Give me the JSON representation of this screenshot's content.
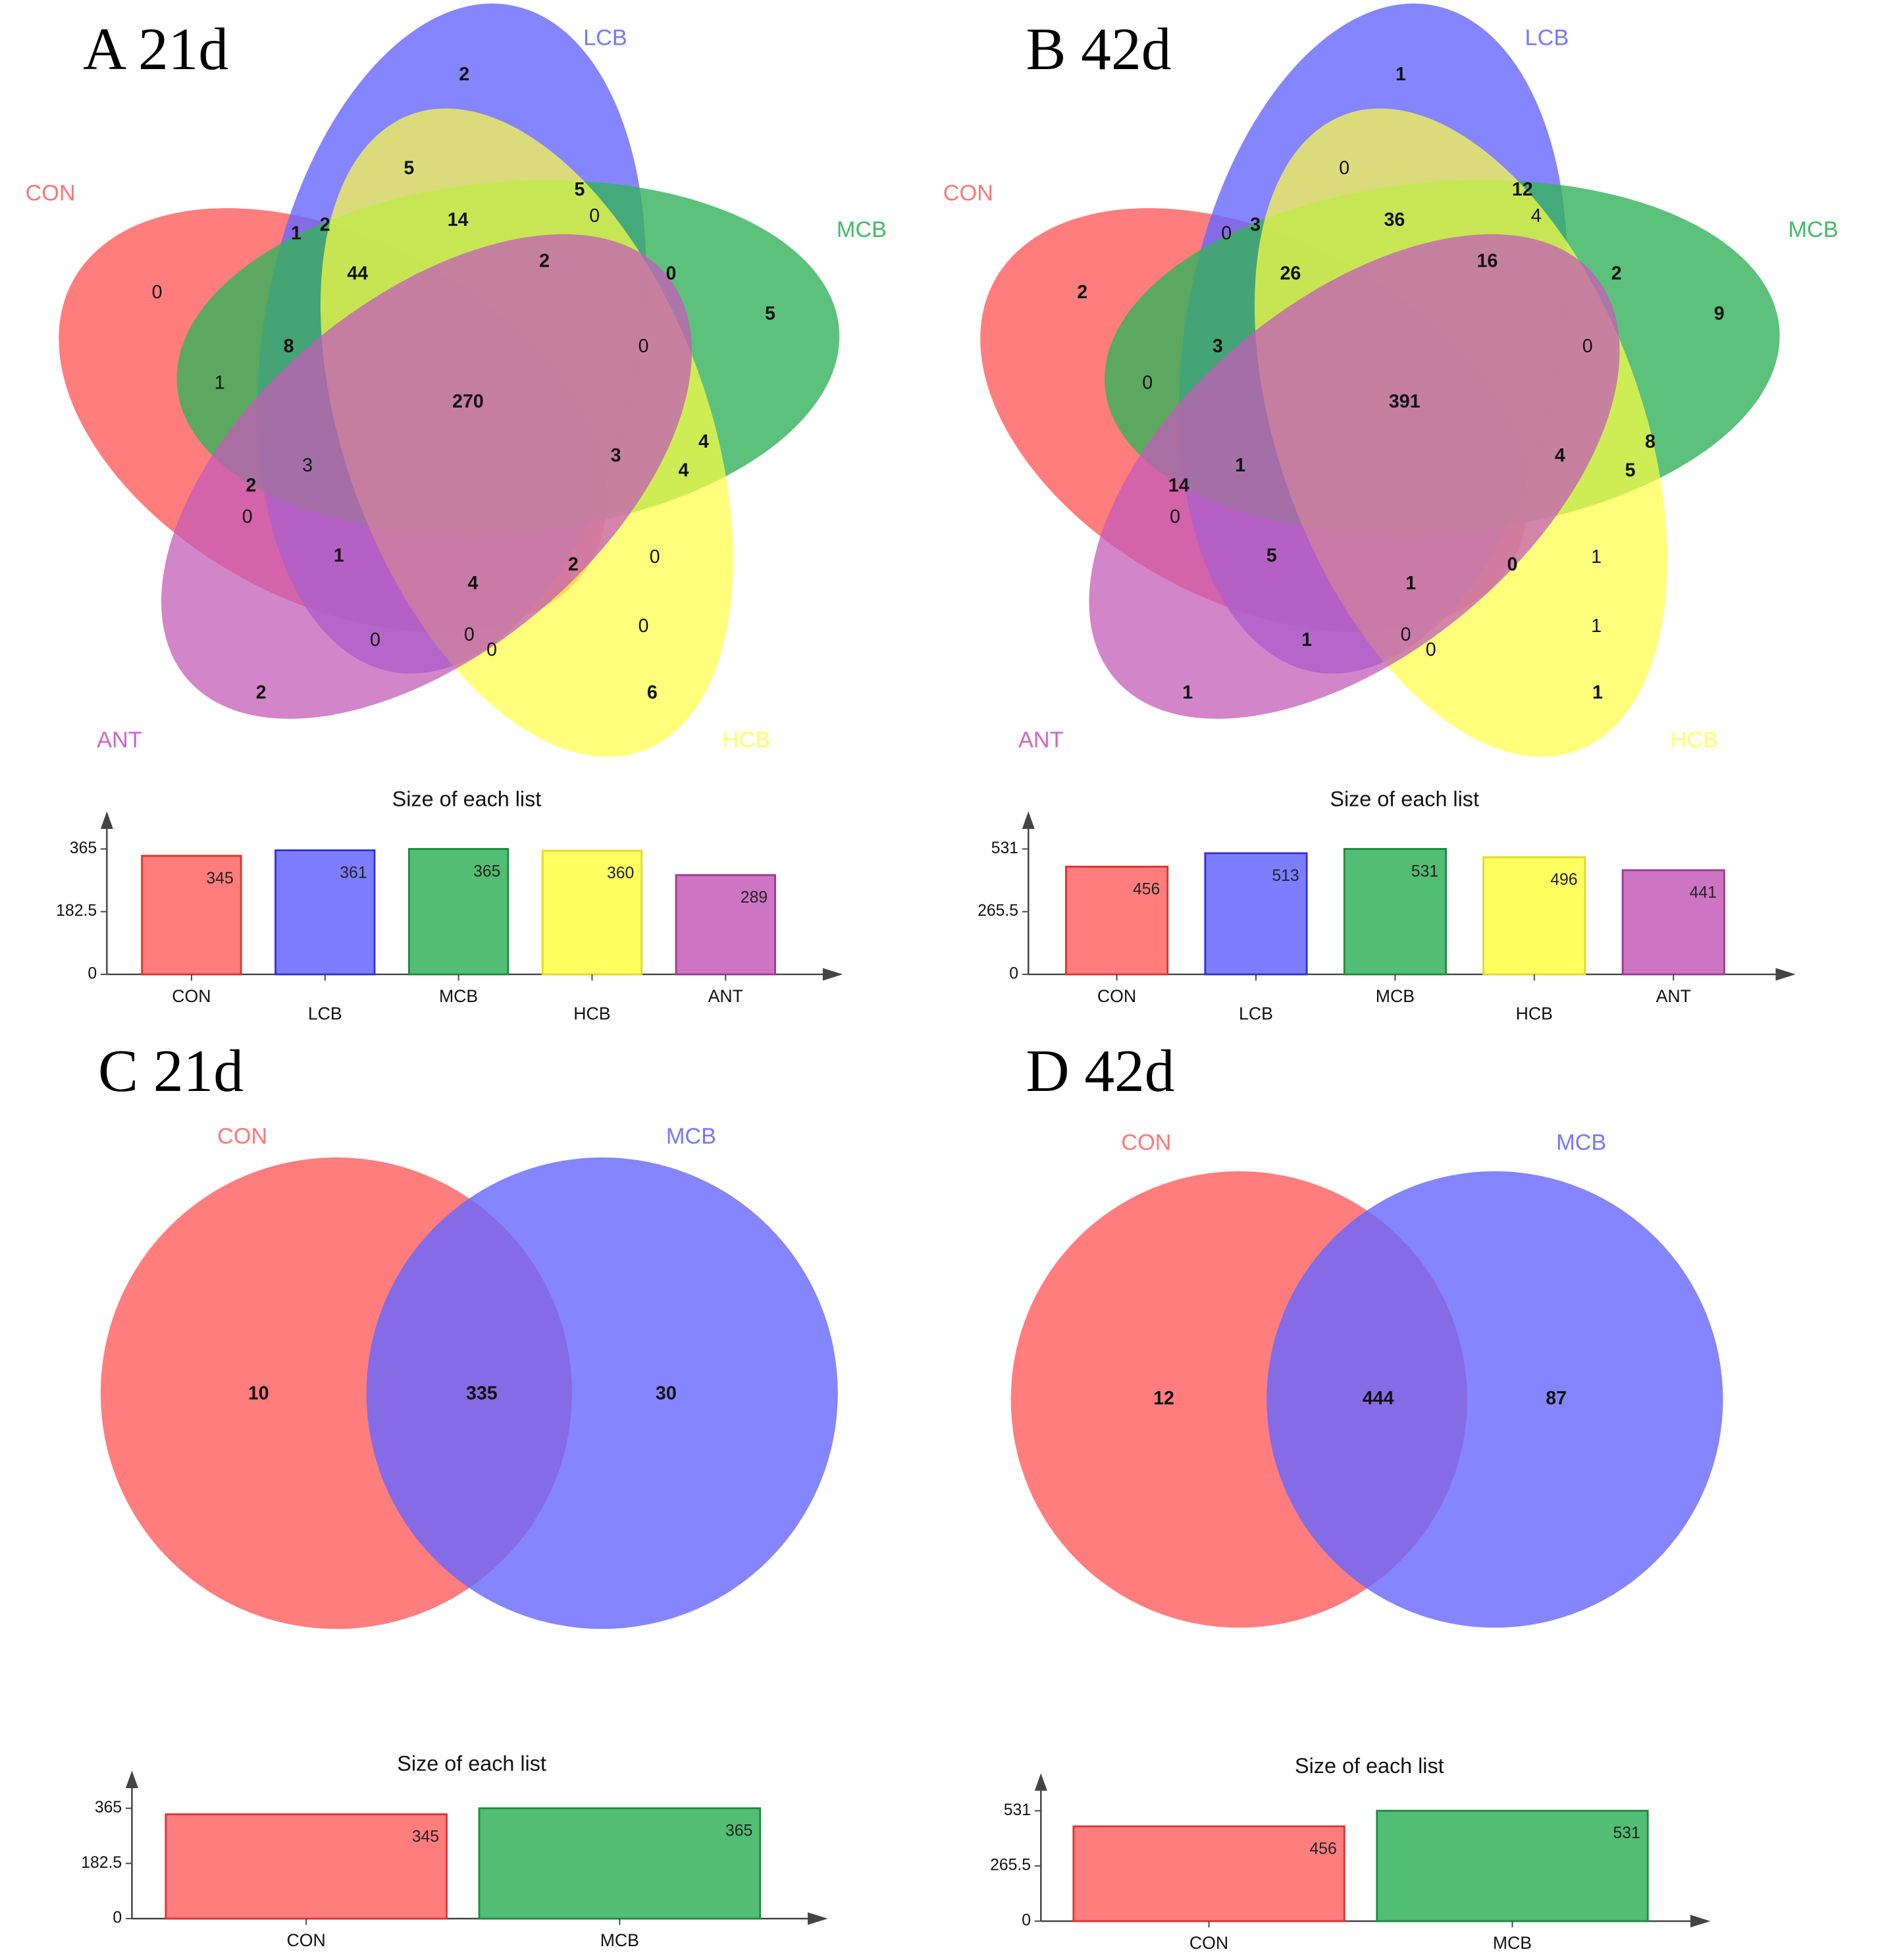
{
  "chart_data": [
    {
      "type": "venn",
      "panel": "A 21d",
      "sets": [
        {
          "name": "CON",
          "color": "#ff6666"
        },
        {
          "name": "LCB",
          "color": "#6666ff"
        },
        {
          "name": "MCB",
          "color": "#33b35a"
        },
        {
          "name": "HCB",
          "color": "#ffff44"
        },
        {
          "name": "ANT",
          "color": "#c45cb8"
        }
      ],
      "regions": [
        "2",
        "5",
        "14",
        "5",
        "0",
        "1",
        "2",
        "44",
        "2",
        "0",
        "0",
        "8",
        "0",
        "5",
        "1",
        "270",
        "4",
        "3",
        "4",
        "2",
        "3",
        "0",
        "0",
        "1",
        "4",
        "2",
        "0",
        "0",
        "0",
        "0",
        "2",
        "6"
      ],
      "bar_title": "Size of each list",
      "yticks": [
        "365",
        "182.5",
        "0"
      ],
      "ymax": 365,
      "categories": [
        "CON",
        "LCB",
        "MCB",
        "HCB",
        "ANT"
      ],
      "values": [
        345,
        361,
        365,
        360,
        289
      ],
      "value_labels": [
        "345",
        "361",
        "365",
        "360",
        "289"
      ]
    },
    {
      "type": "venn",
      "panel": "B 42d",
      "sets": [
        {
          "name": "CON",
          "color": "#ff6666"
        },
        {
          "name": "LCB",
          "color": "#6666ff"
        },
        {
          "name": "MCB",
          "color": "#33b35a"
        },
        {
          "name": "HCB",
          "color": "#ffff44"
        },
        {
          "name": "ANT",
          "color": "#c45cb8"
        }
      ],
      "regions": [
        "1",
        "0",
        "36",
        "12",
        "4",
        "0",
        "3",
        "26",
        "16",
        "2",
        "2",
        "3",
        "0",
        "9",
        "0",
        "391",
        "8",
        "4",
        "5",
        "14",
        "1",
        "0",
        "1",
        "5",
        "1",
        "0",
        "1",
        "0",
        "0",
        "1",
        "1",
        "1"
      ],
      "bar_title": "Size of each list",
      "yticks": [
        "531",
        "265.5",
        "0"
      ],
      "ymax": 531,
      "categories": [
        "CON",
        "LCB",
        "MCB",
        "HCB",
        "ANT"
      ],
      "values": [
        456,
        513,
        531,
        496,
        441
      ],
      "value_labels": [
        "456",
        "513",
        "531",
        "496",
        "441"
      ]
    },
    {
      "type": "venn",
      "panel": "C 21d",
      "sets": [
        {
          "name": "CON",
          "color": "#ff6666"
        },
        {
          "name": "MCB",
          "color": "#6666ff"
        }
      ],
      "regions": [
        "10",
        "335",
        "30"
      ],
      "bar_title": "Size of each list",
      "yticks": [
        "365",
        "182.5",
        "0"
      ],
      "ymax": 365,
      "categories": [
        "CON",
        "MCB"
      ],
      "values": [
        345,
        365
      ],
      "value_labels": [
        "345",
        "365"
      ]
    },
    {
      "type": "venn",
      "panel": "D 42d",
      "sets": [
        {
          "name": "CON",
          "color": "#ff6666"
        },
        {
          "name": "MCB",
          "color": "#6666ff"
        }
      ],
      "regions": [
        "12",
        "444",
        "87"
      ],
      "bar_title": "Size of each list",
      "yticks": [
        "531",
        "265.5",
        "0"
      ],
      "ymax": 531,
      "categories": [
        "CON",
        "MCB"
      ],
      "values": [
        456,
        531
      ],
      "value_labels": [
        "456",
        "531"
      ]
    }
  ]
}
